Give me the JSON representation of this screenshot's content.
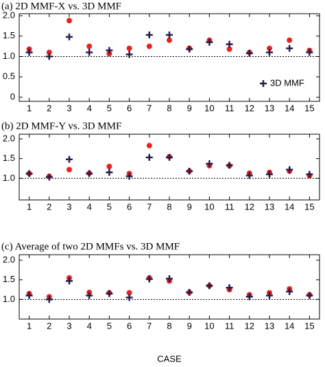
{
  "chart_data": [
    {
      "type": "scatter",
      "title": "(a) 2D MMF-X vs. 3D MMF",
      "categories": [
        1,
        2,
        3,
        4,
        5,
        6,
        7,
        8,
        9,
        10,
        11,
        12,
        13,
        14,
        15
      ],
      "ylim": [
        -0.1,
        2.05
      ],
      "yticks": [
        {
          "value": 2,
          "label": "2.0"
        },
        {
          "value": 1.5,
          "label": "1.5"
        },
        {
          "value": 1,
          "label": "1.0"
        },
        {
          "value": 0.5,
          "label": "0.5"
        },
        0
      ],
      "refline": 1,
      "legend": "lower right",
      "series": [
        {
          "color": "#e8231f",
          "marker": "circle",
          "values": [
            1.18,
            1.1,
            1.88,
            1.25,
            1.07,
            1.2,
            1.25,
            1.4,
            1.2,
            1.4,
            1.18,
            1.1,
            1.2,
            1.4,
            1.15
          ]
        },
        {
          "name": "3D MMF",
          "color": "#2a1a4a",
          "marker": "plus",
          "values": [
            1.1,
            1.0,
            1.48,
            1.1,
            1.15,
            1.05,
            1.53,
            1.53,
            1.18,
            1.35,
            1.3,
            1.08,
            1.1,
            1.2,
            1.1
          ]
        }
      ]
    },
    {
      "type": "scatter",
      "title": "(b) 2D MMF-Y vs. 3D MMF",
      "categories": [
        1,
        2,
        3,
        4,
        5,
        6,
        7,
        8,
        9,
        10,
        11,
        12,
        13,
        14,
        15
      ],
      "ylim": [
        0.45,
        2.12
      ],
      "yticks": [
        {
          "value": 2,
          "label": "2.0"
        },
        {
          "value": 1.5,
          "label": "1.5"
        },
        {
          "value": 1,
          "label": "1.0"
        }
      ],
      "refline": 1,
      "series": [
        {
          "color": "#e8231f",
          "marker": "circle",
          "values": [
            1.12,
            1.05,
            1.22,
            1.13,
            1.3,
            1.12,
            1.83,
            1.55,
            1.18,
            1.32,
            1.32,
            1.13,
            1.15,
            1.18,
            1.07
          ]
        },
        {
          "color": "#2a1a4a",
          "marker": "plus",
          "values": [
            1.12,
            1.03,
            1.48,
            1.12,
            1.15,
            1.05,
            1.53,
            1.53,
            1.18,
            1.37,
            1.33,
            1.07,
            1.1,
            1.22,
            1.1
          ]
        }
      ]
    },
    {
      "type": "scatter",
      "title": "(c) Average of two 2D MMFs vs. 3D MMF",
      "xlabel": "CASE",
      "categories": [
        1,
        2,
        3,
        4,
        5,
        6,
        7,
        8,
        9,
        10,
        11,
        12,
        13,
        14,
        15
      ],
      "ylim": [
        0.5,
        2.14
      ],
      "yticks": [
        {
          "value": 2,
          "label": "2.0"
        },
        {
          "value": 1.5,
          "label": "1.5"
        },
        {
          "value": 1,
          "label": "1.0"
        }
      ],
      "refline": 1,
      "series": [
        {
          "color": "#e8231f",
          "marker": "circle",
          "values": [
            1.15,
            1.07,
            1.55,
            1.18,
            1.17,
            1.17,
            1.55,
            1.47,
            1.18,
            1.35,
            1.25,
            1.12,
            1.17,
            1.27,
            1.12
          ]
        },
        {
          "color": "#2a1a4a",
          "marker": "plus",
          "values": [
            1.1,
            1.0,
            1.47,
            1.1,
            1.15,
            1.05,
            1.52,
            1.53,
            1.18,
            1.35,
            1.3,
            1.07,
            1.1,
            1.2,
            1.1
          ]
        }
      ]
    }
  ]
}
